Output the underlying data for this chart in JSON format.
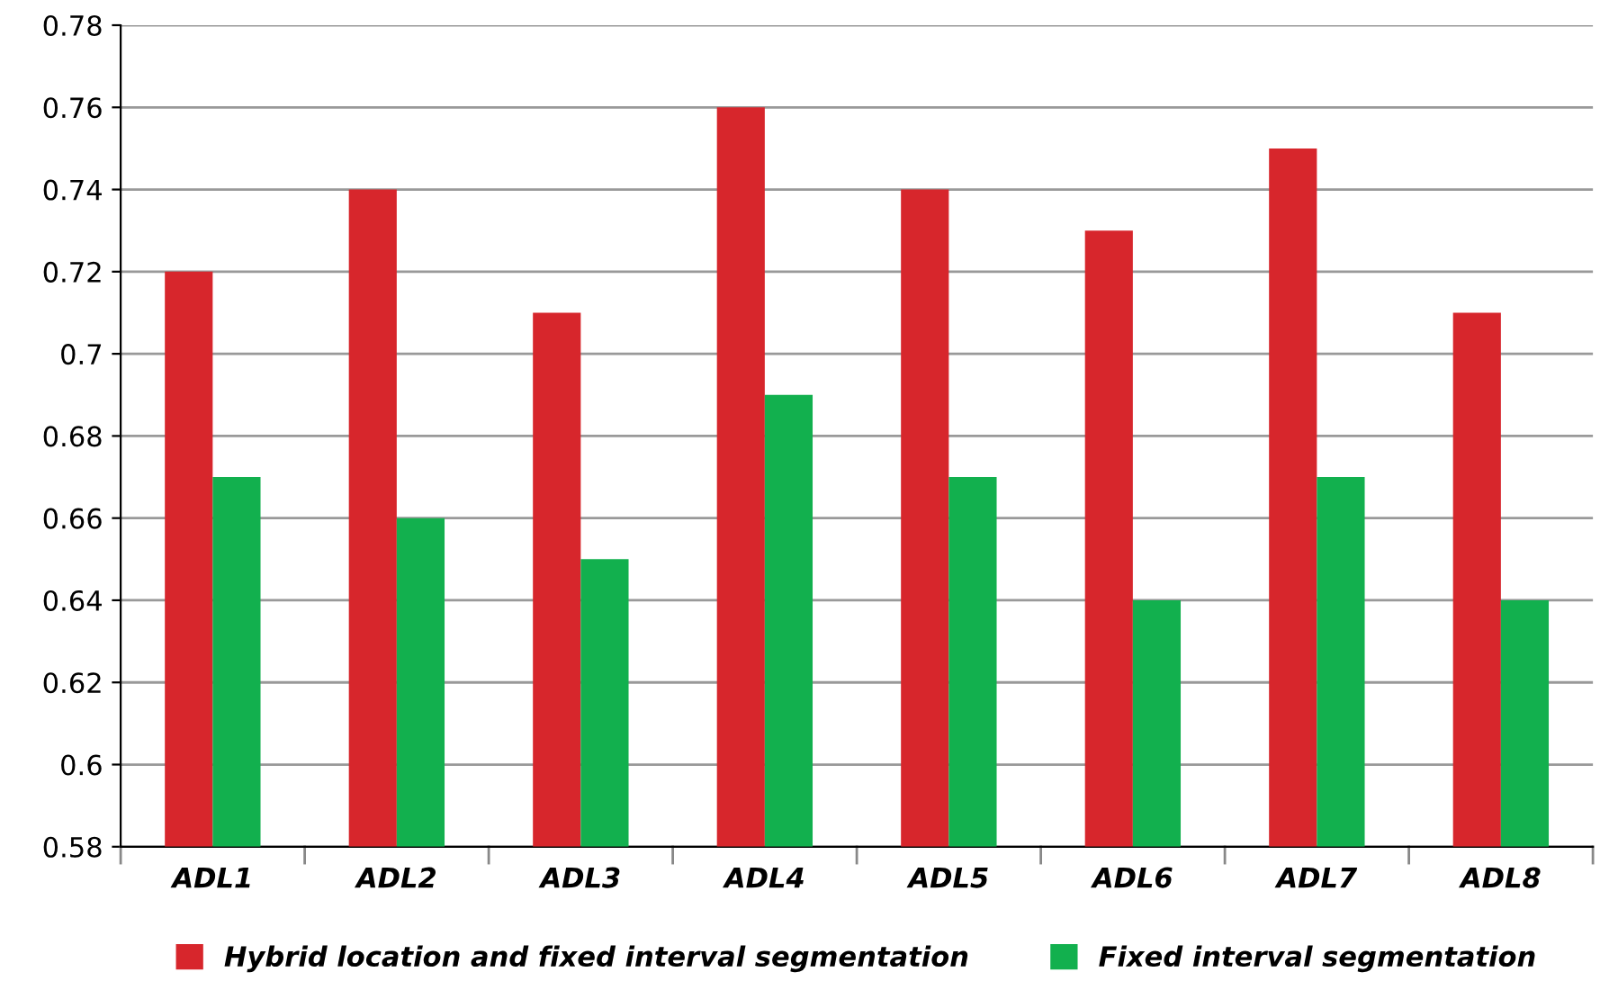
{
  "chart_data": {
    "type": "bar",
    "categories": [
      "ADL1",
      "ADL2",
      "ADL3",
      "ADL4",
      "ADL5",
      "ADL6",
      "ADL7",
      "ADL8"
    ],
    "series": [
      {
        "name": "Hybrid location and fixed interval segmentation",
        "color": "#d7262c",
        "values": [
          0.72,
          0.74,
          0.71,
          0.76,
          0.74,
          0.73,
          0.75,
          0.71
        ]
      },
      {
        "name": "Fixed interval segmentation",
        "color": "#12b04e",
        "values": [
          0.67,
          0.66,
          0.65,
          0.69,
          0.67,
          0.64,
          0.67,
          0.64
        ]
      }
    ],
    "ylim": [
      0.58,
      0.78
    ],
    "yticks": [
      0.58,
      0.6,
      0.62,
      0.64,
      0.66,
      0.68,
      0.7,
      0.72,
      0.74,
      0.76,
      0.78
    ],
    "grid": "y",
    "legend": "bottom"
  }
}
